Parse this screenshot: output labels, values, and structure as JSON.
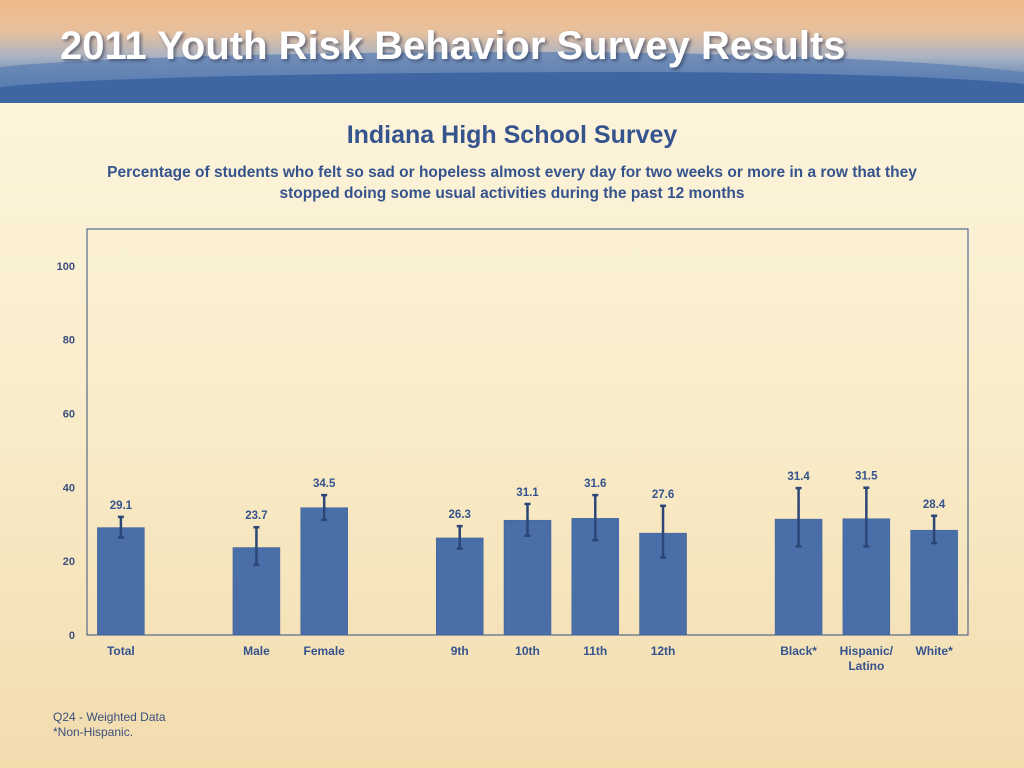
{
  "header": {
    "banner_title": "2011 Youth Risk Behavior Survey Results"
  },
  "colors": {
    "bar": "#4a6fa8",
    "text": "#35538d",
    "axis": "#3a4f7e"
  },
  "chart_data": {
    "type": "bar",
    "title": "Indiana High School Survey",
    "subtitle": "Percentage of students who felt so sad or hopeless almost every day for two weeks or more in a row that they stopped doing some usual activities during the past 12 months",
    "ylim": [
      0,
      110
    ],
    "yticks": [
      0,
      20,
      40,
      60,
      80,
      100
    ],
    "grid": false,
    "categories": [
      "Total",
      "",
      "Male",
      "Female",
      "",
      "9th",
      "10th",
      "11th",
      "12th",
      "",
      "Black*",
      "Hispanic/\nLatino",
      "White*"
    ],
    "values": [
      29.1,
      null,
      23.7,
      34.5,
      null,
      26.3,
      31.1,
      31.6,
      27.6,
      null,
      31.4,
      31.5,
      28.4
    ],
    "error_low": [
      26.4,
      null,
      19.0,
      31.2,
      null,
      23.4,
      26.9,
      25.7,
      21.0,
      null,
      24.0,
      24.0,
      24.9
    ],
    "error_high": [
      32.0,
      null,
      29.2,
      37.9,
      null,
      29.5,
      35.5,
      37.9,
      35.0,
      null,
      39.8,
      39.9,
      32.3
    ]
  },
  "footnotes": {
    "line1": "Q24 - Weighted Data",
    "line2": "*Non-Hispanic."
  }
}
